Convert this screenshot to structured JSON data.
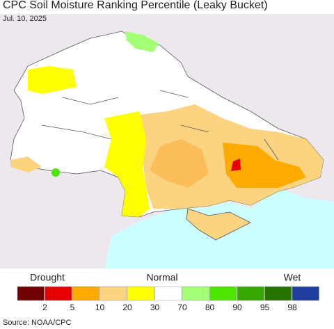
{
  "header": {
    "title": "CPC Soil Moisture Ranking Percentile (Leaky Bucket)",
    "date": "Jul. 10, 2025"
  },
  "legend": {
    "drought": "Drought",
    "normal": "Normal",
    "wet": "Wet",
    "colors": [
      "#730000",
      "#e60000",
      "#ffaa00",
      "#fcd37f",
      "#ffff00",
      "#ffffff",
      "#a3ff73",
      "#4ce600",
      "#38a800",
      "#267300",
      "#1f3e9e"
    ],
    "ticks": [
      2,
      5,
      10,
      20,
      30,
      70,
      80,
      90,
      95,
      98
    ]
  },
  "source": "Source: NOAA/CPC"
}
